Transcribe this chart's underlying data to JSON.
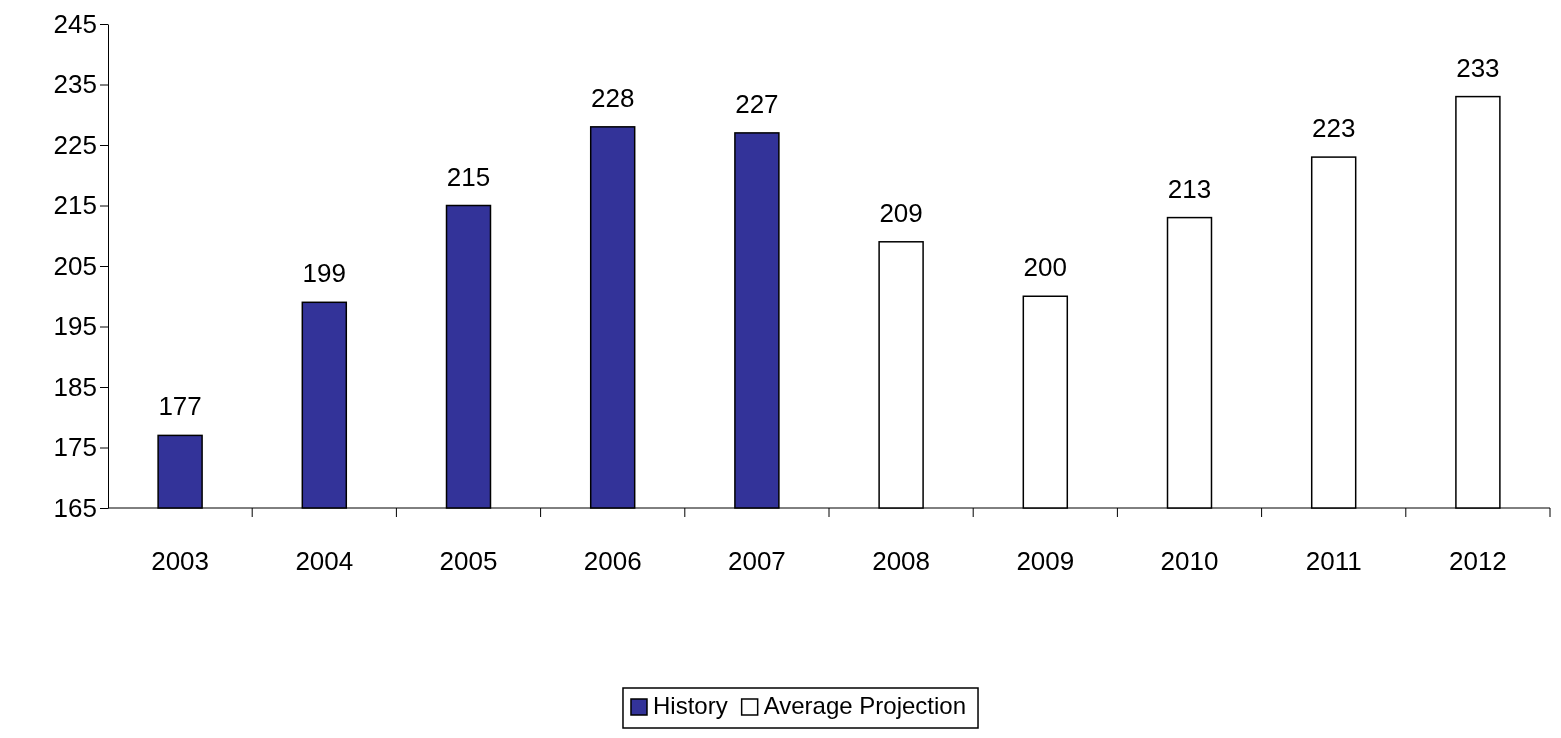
{
  "chart_data": {
    "type": "bar",
    "categories": [
      "2003",
      "2004",
      "2005",
      "2006",
      "2007",
      "2008",
      "2009",
      "2010",
      "2011",
      "2012"
    ],
    "series": [
      {
        "name": "History",
        "color": "#333399",
        "values": [
          177,
          199,
          215,
          228,
          227,
          null,
          null,
          null,
          null,
          null
        ]
      },
      {
        "name": "Average Projection",
        "color": "#ffffff",
        "values": [
          null,
          null,
          null,
          null,
          null,
          209,
          200,
          213,
          223,
          233
        ]
      }
    ],
    "ylim": [
      165,
      245
    ],
    "yticks": [
      165,
      175,
      185,
      195,
      205,
      215,
      225,
      235,
      245
    ],
    "data_labels": true,
    "legend": "bottom",
    "grid": false
  }
}
